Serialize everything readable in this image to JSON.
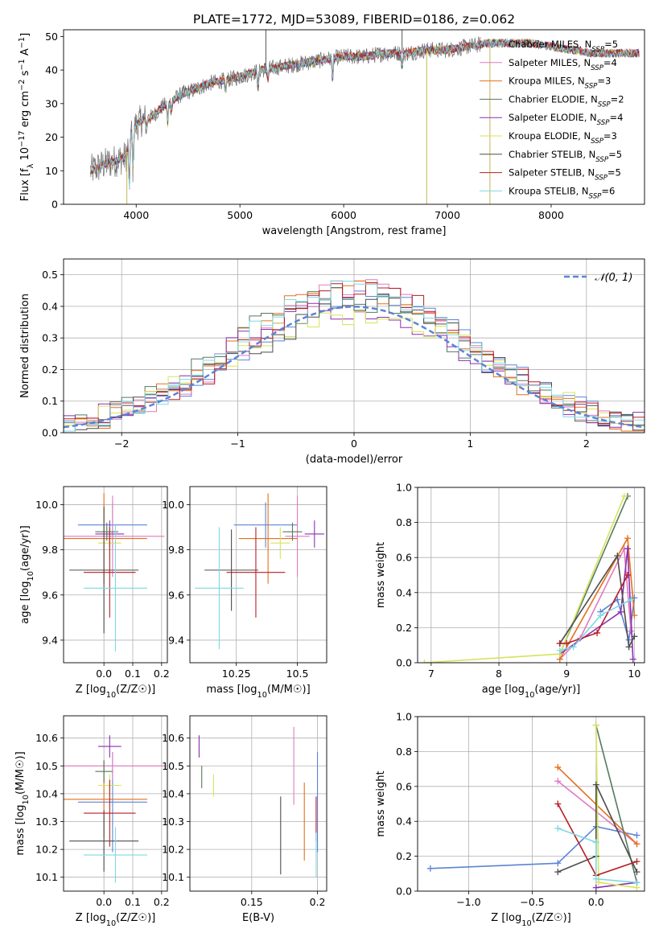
{
  "figure": {
    "title": "PLATE=1772, MJD=53089, FIBERID=0186, z=0.062"
  },
  "palette": {
    "Chabrier MILES": "#5b84d6",
    "Salpeter MILES": "#e07ac2",
    "Kroupa MILES": "#e2711d",
    "Chabrier ELODIE": "#557a5f",
    "Salpeter ELODIE": "#8a2fb0",
    "Kroupa ELODIE": "#d7e35a",
    "Chabrier STELIB": "#4d4d4d",
    "Salpeter STELIB": "#b81d24",
    "Kroupa STELIB": "#7fd8e3"
  },
  "chart_data": [
    {
      "id": "spectrum",
      "type": "line",
      "xlabel": "wavelength [Angstrom, rest frame]",
      "ylabel": "Flux [f_λ 10^-17 erg cm^-2 s^-1 A^-1]",
      "xlim": [
        3300,
        8900
      ],
      "ylim": [
        0,
        52
      ],
      "xticks": [
        4000,
        5000,
        6000,
        7000,
        8000
      ],
      "yticks": [
        0,
        10,
        20,
        30,
        40,
        50
      ],
      "grid": false,
      "legend_position": "top-right",
      "legend": [
        {
          "model": "Chabrier MILES",
          "label": "Chabrier MILES, N",
          "sub": "SSP",
          "suffix": "=5"
        },
        {
          "model": "Salpeter MILES",
          "label": "Salpeter MILES, N",
          "sub": "SSP",
          "suffix": "=4"
        },
        {
          "model": "Kroupa MILES",
          "label": "Kroupa MILES, N",
          "sub": "SSP",
          "suffix": "=3"
        },
        {
          "model": "Chabrier ELODIE",
          "label": "Chabrier ELODIE, N",
          "sub": "SSP",
          "suffix": "=2"
        },
        {
          "model": "Salpeter ELODIE",
          "label": "Salpeter ELODIE, N",
          "sub": "SSP",
          "suffix": "=4"
        },
        {
          "model": "Kroupa ELODIE",
          "label": "Kroupa ELODIE, N",
          "sub": "SSP",
          "suffix": "=3"
        },
        {
          "model": "Chabrier STELIB",
          "label": "Chabrier STELIB, N",
          "sub": "SSP",
          "suffix": "=5"
        },
        {
          "model": "Salpeter STELIB",
          "label": "Salpeter STELIB, N",
          "sub": "SSP",
          "suffix": "=5"
        },
        {
          "model": "Kroupa STELIB",
          "label": "Kroupa STELIB, N",
          "sub": "SSP",
          "suffix": "=6"
        }
      ],
      "continuum": [
        [
          3560,
          10
        ],
        [
          3700,
          12
        ],
        [
          3800,
          13
        ],
        [
          3900,
          14
        ],
        [
          3950,
          22
        ],
        [
          4050,
          25
        ],
        [
          4150,
          26
        ],
        [
          4250,
          29
        ],
        [
          4350,
          31
        ],
        [
          4450,
          33
        ],
        [
          4550,
          34
        ],
        [
          4700,
          36
        ],
        [
          4860,
          37
        ],
        [
          5000,
          38
        ],
        [
          5200,
          40
        ],
        [
          5400,
          41
        ],
        [
          5600,
          42
        ],
        [
          5800,
          43
        ],
        [
          6000,
          44
        ],
        [
          6200,
          44
        ],
        [
          6400,
          45
        ],
        [
          6600,
          45
        ],
        [
          6800,
          46
        ],
        [
          7000,
          46
        ],
        [
          7200,
          47
        ],
        [
          7400,
          48
        ],
        [
          7600,
          48
        ],
        [
          7800,
          48
        ],
        [
          8000,
          47
        ],
        [
          8200,
          46
        ],
        [
          8400,
          45
        ],
        [
          8600,
          45
        ],
        [
          8800,
          45
        ]
      ],
      "observed_range": [
        3560,
        7320
      ],
      "model_range": [
        3560,
        8850
      ],
      "absorption_features": [
        [
          3934,
          15
        ],
        [
          3969,
          12
        ],
        [
          4101,
          3
        ],
        [
          4304,
          6
        ],
        [
          4340,
          3
        ],
        [
          4861,
          4
        ],
        [
          5175,
          5
        ],
        [
          5270,
          3
        ],
        [
          5893,
          6
        ],
        [
          6563,
          4
        ]
      ],
      "spikes": [
        [
          5250,
          54
        ],
        [
          6563,
          54
        ],
        [
          6800,
          0
        ],
        [
          3910,
          0
        ],
        [
          7410,
          0
        ]
      ]
    },
    {
      "id": "residuals",
      "type": "histogram",
      "xlabel": "(data-model)/error",
      "ylabel": "Normed distribution",
      "xlim": [
        -2.5,
        2.5
      ],
      "ylim": [
        0,
        0.55
      ],
      "xticks": [
        -2,
        -1,
        0,
        1,
        2
      ],
      "yticks": [
        0.0,
        0.1,
        0.2,
        0.3,
        0.4,
        0.5
      ],
      "grid": true,
      "legend_position": "top-right",
      "reference_label": "𝒩(0, 1)",
      "reference_mean": 0,
      "reference_sigma": 1,
      "bin_width": 0.1
    },
    {
      "id": "age-vs-Z",
      "type": "errorbar",
      "xlabel": "Z [log10(Z/Z☉)]",
      "ylabel": "age [log10(age/yr)]",
      "xlim": [
        -0.14,
        0.22
      ],
      "ylim": [
        9.3,
        10.08
      ],
      "xticks": [
        0.0,
        0.1,
        0.2
      ],
      "yticks": [
        9.4,
        9.6,
        9.8,
        10.0
      ],
      "grid": true,
      "points": [
        {
          "model": "Chabrier MILES",
          "x": 0.03,
          "xerr": 0.12,
          "y": 9.91,
          "yerr": 0.1
        },
        {
          "model": "Salpeter MILES",
          "x": 0.03,
          "xerr": 0.18,
          "y": 9.86,
          "yerr": 0.18
        },
        {
          "model": "Kroupa MILES",
          "x": 0.0,
          "xerr": 0.15,
          "y": 9.85,
          "yerr": 0.2
        },
        {
          "model": "Chabrier ELODIE",
          "x": 0.01,
          "xerr": 0.04,
          "y": 9.88,
          "yerr": 0.04
        },
        {
          "model": "Salpeter ELODIE",
          "x": 0.02,
          "xerr": 0.05,
          "y": 9.87,
          "yerr": 0.06
        },
        {
          "model": "Kroupa ELODIE",
          "x": 0.02,
          "xerr": 0.04,
          "y": 9.83,
          "yerr": 0.07
        },
        {
          "model": "Chabrier STELIB",
          "x": 0.0,
          "xerr": 0.12,
          "y": 9.71,
          "yerr": 0.28
        },
        {
          "model": "Salpeter STELIB",
          "x": 0.02,
          "xerr": 0.09,
          "y": 9.7,
          "yerr": 0.2
        },
        {
          "model": "Kroupa STELIB",
          "x": 0.04,
          "xerr": 0.11,
          "y": 9.63,
          "yerr": 0.28
        }
      ]
    },
    {
      "id": "age-vs-mass",
      "type": "errorbar",
      "xlabel": "mass [log10(M/M☉)]",
      "ylabel": "",
      "xlim": [
        10.06,
        10.62
      ],
      "ylim": [
        9.3,
        10.08
      ],
      "xticks": [
        10.25,
        10.5
      ],
      "yticks": [
        9.4,
        9.6,
        9.8,
        10.0
      ],
      "grid": true,
      "points": [
        {
          "model": "Chabrier MILES",
          "x": 10.37,
          "xerr": 0.13,
          "y": 9.91,
          "yerr": 0.1
        },
        {
          "model": "Salpeter MILES",
          "x": 10.5,
          "xerr": 0.05,
          "y": 9.86,
          "yerr": 0.18
        },
        {
          "model": "Kroupa MILES",
          "x": 10.38,
          "xerr": 0.12,
          "y": 9.85,
          "yerr": 0.2
        },
        {
          "model": "Chabrier ELODIE",
          "x": 10.48,
          "xerr": 0.04,
          "y": 9.88,
          "yerr": 0.04
        },
        {
          "model": "Salpeter ELODIE",
          "x": 10.57,
          "xerr": 0.04,
          "y": 9.87,
          "yerr": 0.06
        },
        {
          "model": "Kroupa ELODIE",
          "x": 10.43,
          "xerr": 0.04,
          "y": 9.83,
          "yerr": 0.07
        },
        {
          "model": "Chabrier STELIB",
          "x": 10.23,
          "xerr": 0.11,
          "y": 9.71,
          "yerr": 0.18
        },
        {
          "model": "Salpeter STELIB",
          "x": 10.33,
          "xerr": 0.12,
          "y": 9.7,
          "yerr": 0.2
        },
        {
          "model": "Kroupa STELIB",
          "x": 10.18,
          "xerr": 0.1,
          "y": 9.63,
          "yerr": 0.27
        }
      ]
    },
    {
      "id": "mass-weight-vs-age",
      "type": "line",
      "xlabel": "age [log10(age/yr)]",
      "ylabel": "mass weight",
      "xlim": [
        6.8,
        10.15
      ],
      "ylim": [
        0,
        1.0
      ],
      "xticks": [
        7,
        8,
        9,
        10
      ],
      "yticks": [
        0.0,
        0.2,
        0.4,
        0.6,
        0.8,
        1.0
      ],
      "grid": true,
      "series": [
        {
          "model": "Chabrier MILES",
          "x": [
            9.5,
            9.75,
            9.92,
            10.0
          ],
          "y": [
            0.29,
            0.36,
            0.13,
            0.37
          ]
        },
        {
          "model": "Salpeter MILES",
          "x": [
            8.9,
            9.2,
            9.85,
            9.95
          ],
          "y": [
            0.02,
            0.14,
            0.65,
            0.18
          ]
        },
        {
          "model": "Kroupa MILES",
          "x": [
            8.9,
            9.9,
            10.0
          ],
          "y": [
            0.02,
            0.71,
            0.27
          ]
        },
        {
          "model": "Chabrier ELODIE",
          "x": [
            8.9,
            9.9
          ],
          "y": [
            0.05,
            0.95
          ]
        },
        {
          "model": "Salpeter ELODIE",
          "x": [
            8.9,
            9.8,
            9.9,
            9.98
          ],
          "y": [
            0.05,
            0.29,
            0.65,
            0.02
          ]
        },
        {
          "model": "Kroupa ELODIE",
          "x": [
            6.9,
            8.9,
            9.85
          ],
          "y": [
            0.0,
            0.05,
            0.95
          ]
        },
        {
          "model": "Chabrier STELIB",
          "x": [
            8.9,
            9.75,
            9.92,
            10.0
          ],
          "y": [
            0.11,
            0.61,
            0.09,
            0.15
          ]
        },
        {
          "model": "Salpeter STELIB",
          "x": [
            8.9,
            9.0,
            9.45,
            9.9
          ],
          "y": [
            0.11,
            0.11,
            0.17,
            0.5
          ]
        },
        {
          "model": "Kroupa STELIB",
          "x": [
            8.9,
            9.1,
            9.5,
            9.95
          ],
          "y": [
            0.07,
            0.09,
            0.27,
            0.36
          ]
        }
      ]
    },
    {
      "id": "mass-vs-Z",
      "type": "errorbar",
      "xlabel": "Z [log10(Z/Z☉)]",
      "ylabel": "mass [log10(M/M☉)]",
      "xlim": [
        -0.14,
        0.22
      ],
      "ylim": [
        10.05,
        10.68
      ],
      "xticks": [
        0.0,
        0.1,
        0.2
      ],
      "yticks": [
        10.1,
        10.2,
        10.3,
        10.4,
        10.5,
        10.6
      ],
      "grid": true,
      "points": [
        {
          "model": "Chabrier MILES",
          "x": 0.03,
          "xerr": 0.12,
          "y": 10.37,
          "yerr": 0.18
        },
        {
          "model": "Salpeter MILES",
          "x": 0.03,
          "xerr": 0.18,
          "y": 10.5,
          "yerr": 0.05
        },
        {
          "model": "Kroupa MILES",
          "x": 0.0,
          "xerr": 0.15,
          "y": 10.38,
          "yerr": 0.14
        },
        {
          "model": "Chabrier ELODIE",
          "x": 0.0,
          "xerr": 0.03,
          "y": 10.48,
          "yerr": 0.04
        },
        {
          "model": "Salpeter ELODIE",
          "x": 0.02,
          "xerr": 0.04,
          "y": 10.57,
          "yerr": 0.04
        },
        {
          "model": "Kroupa ELODIE",
          "x": 0.02,
          "xerr": 0.04,
          "y": 10.43,
          "yerr": 0.04
        },
        {
          "model": "Chabrier STELIB",
          "x": 0.0,
          "xerr": 0.12,
          "y": 10.23,
          "yerr": 0.11
        },
        {
          "model": "Salpeter STELIB",
          "x": 0.02,
          "xerr": 0.09,
          "y": 10.33,
          "yerr": 0.12
        },
        {
          "model": "Kroupa STELIB",
          "x": 0.04,
          "xerr": 0.11,
          "y": 10.18,
          "yerr": 0.1
        }
      ]
    },
    {
      "id": "mass-vs-EBV",
      "type": "errorbar",
      "xlabel": "E(B-V)",
      "ylabel": "",
      "xlim": [
        0.103,
        0.207
      ],
      "ylim": [
        10.05,
        10.68
      ],
      "xticks": [
        0.15,
        0.2
      ],
      "yticks": [
        10.1,
        10.2,
        10.3,
        10.4,
        10.5,
        10.6
      ],
      "grid": true,
      "points": [
        {
          "model": "Chabrier MILES",
          "x": 0.2,
          "xerr": 0,
          "y": 10.37,
          "yerr": 0.18
        },
        {
          "model": "Salpeter MILES",
          "x": 0.182,
          "xerr": 0,
          "y": 10.5,
          "yerr": 0.14
        },
        {
          "model": "Kroupa MILES",
          "x": 0.19,
          "xerr": 0,
          "y": 10.3,
          "yerr": 0.14
        },
        {
          "model": "Chabrier ELODIE",
          "x": 0.112,
          "xerr": 0,
          "y": 10.46,
          "yerr": 0.04
        },
        {
          "model": "Salpeter ELODIE",
          "x": 0.11,
          "xerr": 0,
          "y": 10.57,
          "yerr": 0.04
        },
        {
          "model": "Kroupa ELODIE",
          "x": 0.121,
          "xerr": 0,
          "y": 10.43,
          "yerr": 0.04
        },
        {
          "model": "Chabrier STELIB",
          "x": 0.172,
          "xerr": 0,
          "y": 10.25,
          "yerr": 0.14
        },
        {
          "model": "Salpeter STELIB",
          "x": 0.199,
          "xerr": 0,
          "y": 10.31,
          "yerr": 0.08
        },
        {
          "model": "Kroupa STELIB",
          "x": 0.199,
          "xerr": 0,
          "y": 10.18,
          "yerr": 0.08
        }
      ]
    },
    {
      "id": "mass-weight-vs-Z",
      "type": "line",
      "xlabel": "Z [log10(Z/Z☉)]",
      "ylabel": "mass weight",
      "xlim": [
        -1.4,
        0.38
      ],
      "ylim": [
        0,
        1.0
      ],
      "xticks": [
        -1.0,
        -0.5,
        0.0
      ],
      "yticks": [
        0.0,
        0.2,
        0.4,
        0.6,
        0.8,
        1.0
      ],
      "grid": true,
      "series": [
        {
          "model": "Chabrier MILES",
          "x": [
            -1.3,
            -0.3,
            0.0,
            0.32
          ],
          "y": [
            0.13,
            0.16,
            0.37,
            0.32
          ]
        },
        {
          "model": "Salpeter MILES",
          "x": [
            -0.3,
            0.32
          ],
          "y": [
            0.63,
            0.27
          ]
        },
        {
          "model": "Kroupa MILES",
          "x": [
            -0.3,
            0.32
          ],
          "y": [
            0.71,
            0.27
          ]
        },
        {
          "model": "Chabrier ELODIE",
          "x": [
            0.0,
            0.32
          ],
          "y": [
            0.95,
            0.05
          ]
        },
        {
          "model": "Salpeter ELODIE",
          "x": [
            0.0,
            0.32
          ],
          "y": [
            0.02,
            0.05
          ]
        },
        {
          "model": "Kroupa ELODIE",
          "x": [
            0.0,
            0.02,
            0.32
          ],
          "y": [
            0.95,
            0.05,
            0.02
          ]
        },
        {
          "model": "Chabrier STELIB",
          "x": [
            -0.3,
            0.0,
            0.0,
            0.32
          ],
          "y": [
            0.11,
            0.2,
            0.61,
            0.11
          ]
        },
        {
          "model": "Salpeter STELIB",
          "x": [
            -0.3,
            0.0,
            0.32
          ],
          "y": [
            0.5,
            0.09,
            0.17
          ]
        },
        {
          "model": "Kroupa STELIB",
          "x": [
            -0.3,
            0.0,
            0.0,
            0.32
          ],
          "y": [
            0.36,
            0.28,
            0.07,
            0.05
          ]
        }
      ]
    }
  ]
}
